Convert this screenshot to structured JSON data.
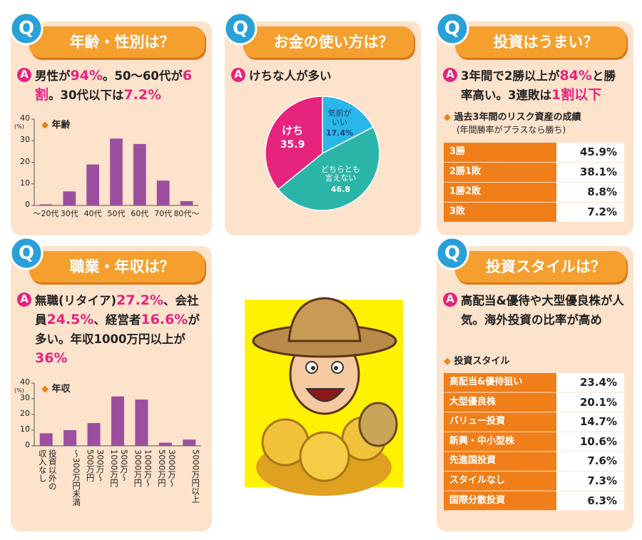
{
  "badge_q": "Q",
  "badge_a": "A",
  "panels": [
    {
      "title": "年齢・性別は？",
      "answer": [
        {
          "text": "男性が"
        },
        {
          "text": "94%",
          "em": true
        },
        {
          "text": "。50～60代が"
        },
        {
          "text": "6割",
          "em": true
        },
        {
          "text": "。30代以下は"
        },
        {
          "text": "7.2%",
          "em": true
        }
      ]
    },
    {
      "title": "お金の使い方は？",
      "answer": [
        {
          "text": "けちな人が多い"
        }
      ]
    },
    {
      "title": "投資はうまい？",
      "answer": [
        {
          "text": "3年間で2勝以上が"
        },
        {
          "text": "84%",
          "em": true
        },
        {
          "text": "と勝率高い。3連敗は"
        },
        {
          "text": "1割以下",
          "em": true
        }
      ]
    },
    {
      "title": "職業・年収は？",
      "answer": [
        {
          "text": "無職(リタイア)"
        },
        {
          "text": "27.2%",
          "em": true
        },
        {
          "text": "、会社員"
        },
        {
          "text": "24.5%",
          "em": true
        },
        {
          "text": "、経営者"
        },
        {
          "text": "16.6%",
          "em": true
        },
        {
          "text": "が多い。年収1000万円以上が"
        },
        {
          "text": "36%",
          "em": true
        }
      ]
    },
    {
      "title": "投資スタイルは？",
      "answer": [
        {
          "text": "高配当&優待や大型優良株が人気。海外投資の比率が高め"
        }
      ]
    }
  ],
  "chart_data": [
    {
      "type": "bar",
      "legend": "年齢",
      "ylabel": "(%)",
      "color": "#9b4f9e",
      "categories": [
        "～20代",
        "30代",
        "40代",
        "50代",
        "60代",
        "70代",
        "80代～"
      ],
      "values": [
        0.5,
        6.5,
        19,
        31,
        28.5,
        11.5,
        2
      ],
      "ylim": [
        0,
        40
      ],
      "yticks": [
        0,
        10,
        20,
        30,
        40
      ]
    },
    {
      "type": "pie",
      "categories": [
        "気前が\nいい",
        "どちらとも\n言えない",
        "けち"
      ],
      "values": [
        17.4,
        46.8,
        35.9
      ],
      "value_labels": [
        "17.4%",
        "46.8",
        "35.9"
      ],
      "colors": [
        "#29b6e8",
        "#2bb5a8",
        "#e6237d"
      ],
      "label_colors": [
        "#1c3f73",
        "#ffffff",
        "#ffffff"
      ]
    },
    {
      "type": "bar",
      "legend": "年収",
      "ylabel": "(%)",
      "color": "#9b4f9e",
      "categories": [
        "投資以外の\n収入なし",
        "～300万円未満",
        "300万～\n500万円",
        "500万～\n1000万円",
        "1000万～\n3000万円",
        "3000万～\n5000万円",
        "5000万円以上"
      ],
      "values": [
        8,
        10,
        14.5,
        31.5,
        29.5,
        2,
        4
      ],
      "ylim": [
        0,
        40
      ],
      "yticks": [
        0,
        10,
        20,
        30,
        40
      ]
    }
  ],
  "tables": [
    {
      "title": "過去3年間のリスク資産の成績",
      "note": "(年間勝率がプラスなら勝ち)",
      "rows": [
        [
          "3勝",
          "45.9%"
        ],
        [
          "2勝1敗",
          "38.1%"
        ],
        [
          "1勝2敗",
          "8.8%"
        ],
        [
          "3敗",
          "7.2%"
        ]
      ]
    },
    {
      "title": "投資スタイル",
      "rows": [
        [
          "高配当&優待狙い",
          "23.4%"
        ],
        [
          "大型優良株",
          "20.1%"
        ],
        [
          "バリュー投資",
          "14.7%"
        ],
        [
          "新興・中小型株",
          "10.6%"
        ],
        [
          "先進国投資",
          "7.6%"
        ],
        [
          "スタイルなし",
          "7.3%"
        ],
        [
          "国際分散投資",
          "6.3%"
        ]
      ]
    }
  ]
}
